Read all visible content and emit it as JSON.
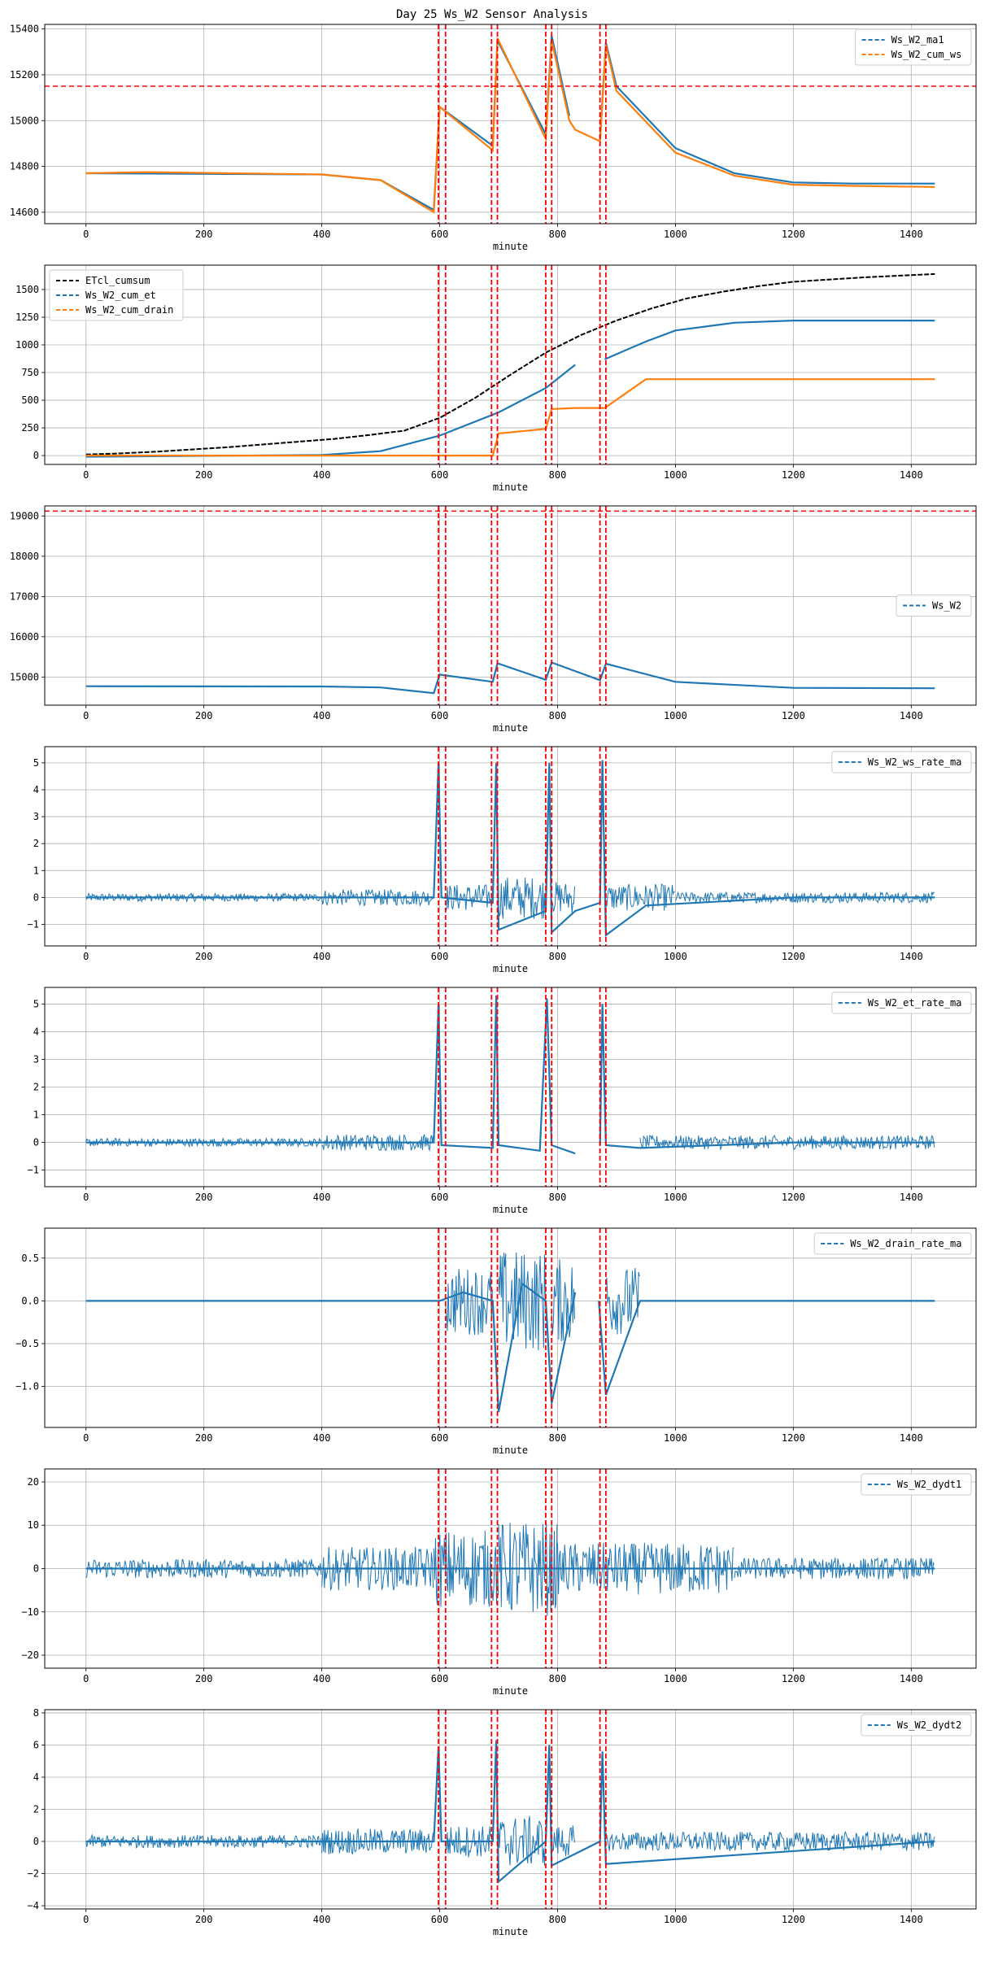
{
  "title": "Day 25 Ws_W2 Sensor Analysis",
  "colors": {
    "blue": "#1f77b4",
    "orange": "#ff7f0e",
    "black": "#000000",
    "red": "#ff0000",
    "grid": "#b0b0b0"
  },
  "event_lines": [
    598,
    610,
    688,
    698,
    780,
    790,
    872,
    882
  ],
  "chart_data": [
    {
      "id": "p1",
      "type": "line",
      "xlabel": "minute",
      "xlim": [
        -70,
        1510
      ],
      "ylim": [
        14550,
        15420
      ],
      "xticks": [
        0,
        200,
        400,
        600,
        800,
        1000,
        1200,
        1400
      ],
      "yticks": [
        14600,
        14800,
        15000,
        15200,
        15400
      ],
      "hline": 15150,
      "legend_loc": "top-right",
      "series": [
        {
          "name": "Ws_W2_ma1",
          "color": "#1f77b4",
          "x": [
            0,
            400,
            500,
            590,
            600,
            690,
            698,
            780,
            790,
            820,
            830,
            872,
            882,
            900,
            1000,
            1100,
            1200,
            1300,
            1440
          ],
          "y": [
            14770,
            14765,
            14740,
            14610,
            15060,
            14890,
            15350,
            14940,
            15370,
            15020,
            null,
            14920,
            15340,
            15150,
            14880,
            14770,
            14730,
            14725,
            14725
          ]
        },
        {
          "name": "Ws_W2_cum_ws",
          "color": "#ff7f0e",
          "x": [
            0,
            100,
            400,
            500,
            590,
            600,
            690,
            698,
            780,
            790,
            820,
            830,
            872,
            882,
            900,
            1000,
            1100,
            1200,
            1300,
            1440
          ],
          "y": [
            14770,
            14775,
            14765,
            14740,
            14600,
            15060,
            14870,
            15360,
            14920,
            15350,
            15000,
            14960,
            14910,
            15330,
            15130,
            14860,
            14760,
            14720,
            14715,
            14710
          ]
        }
      ]
    },
    {
      "id": "p2",
      "type": "line",
      "xlabel": "minute",
      "xlim": [
        -70,
        1510
      ],
      "ylim": [
        -80,
        1720
      ],
      "xticks": [
        0,
        200,
        400,
        600,
        800,
        1000,
        1200,
        1400
      ],
      "yticks": [
        0,
        250,
        500,
        750,
        1000,
        1250,
        1500
      ],
      "legend_loc": "top-left",
      "series": [
        {
          "name": "ETcl_cumsum",
          "color": "#000000",
          "x": [
            0,
            60,
            120,
            180,
            240,
            300,
            360,
            420,
            480,
            540,
            600,
            660,
            720,
            780,
            840,
            900,
            960,
            1020,
            1080,
            1140,
            1200,
            1260,
            1320,
            1380,
            1440
          ],
          "y": [
            10,
            20,
            35,
            55,
            75,
            100,
            125,
            150,
            185,
            225,
            340,
            520,
            730,
            930,
            1090,
            1220,
            1330,
            1420,
            1480,
            1530,
            1570,
            1590,
            1610,
            1625,
            1640
          ]
        },
        {
          "name": "Ws_W2_cum_et",
          "color": "#1f77b4",
          "x": [
            0,
            400,
            500,
            600,
            700,
            780,
            830,
            840,
            880,
            950,
            1000,
            1100,
            1200,
            1300,
            1440
          ],
          "y": [
            -10,
            5,
            40,
            180,
            390,
            610,
            820,
            null,
            870,
            1030,
            1130,
            1200,
            1220,
            1220,
            1220
          ]
        },
        {
          "name": "Ws_W2_cum_drain",
          "color": "#ff7f0e",
          "x": [
            0,
            690,
            700,
            780,
            790,
            830,
            880,
            950,
            1000,
            1200,
            1440
          ],
          "y": [
            0,
            0,
            200,
            240,
            420,
            430,
            430,
            690,
            690,
            690,
            690
          ]
        }
      ]
    },
    {
      "id": "p3",
      "type": "line",
      "xlabel": "minute",
      "xlim": [
        -70,
        1510
      ],
      "ylim": [
        14300,
        19250
      ],
      "xticks": [
        0,
        200,
        400,
        600,
        800,
        1000,
        1200,
        1400
      ],
      "yticks": [
        15000,
        16000,
        17000,
        18000,
        19000
      ],
      "hline": 19120,
      "legend_loc": "center-right",
      "series": [
        {
          "name": "Ws_W2",
          "color": "#1f77b4",
          "x": [
            0,
            400,
            500,
            590,
            600,
            690,
            698,
            780,
            790,
            872,
            882,
            1000,
            1200,
            1440
          ],
          "y": [
            14770,
            14765,
            14740,
            14600,
            15060,
            14880,
            15340,
            14930,
            15360,
            14920,
            15330,
            14880,
            14730,
            14720
          ]
        }
      ]
    },
    {
      "id": "p4",
      "type": "line",
      "xlabel": "minute",
      "xlim": [
        -70,
        1510
      ],
      "ylim": [
        -1.8,
        5.6
      ],
      "xticks": [
        0,
        200,
        400,
        600,
        800,
        1000,
        1200,
        1400
      ],
      "yticks": [
        -1,
        0,
        1,
        2,
        3,
        4,
        5
      ],
      "legend_loc": "top-right",
      "noise": [
        [
          0,
          400,
          0.15
        ],
        [
          400,
          590,
          0.3
        ],
        [
          610,
          690,
          0.5
        ],
        [
          700,
          780,
          0.8
        ],
        [
          790,
          830,
          0.6
        ],
        [
          882,
          1000,
          0.5
        ],
        [
          1000,
          1440,
          0.2
        ]
      ],
      "series": [
        {
          "name": "Ws_W2_ws_rate_ma",
          "color": "#1f77b4",
          "x": [
            0,
            590,
            598,
            603,
            690,
            696,
            700,
            780,
            786,
            790,
            830,
            872,
            876,
            882,
            950,
            1200,
            1440
          ],
          "y": [
            0,
            0,
            5.0,
            0,
            -0.2,
            5.0,
            -1.2,
            -0.5,
            5.0,
            -1.3,
            -0.5,
            -0.2,
            5.1,
            -1.4,
            -0.3,
            0,
            0
          ]
        }
      ]
    },
    {
      "id": "p5",
      "type": "line",
      "xlabel": "minute",
      "xlim": [
        -70,
        1510
      ],
      "ylim": [
        -1.6,
        5.6
      ],
      "xticks": [
        0,
        200,
        400,
        600,
        800,
        1000,
        1200,
        1400
      ],
      "yticks": [
        -1,
        0,
        1,
        2,
        3,
        4,
        5
      ],
      "legend_loc": "top-right",
      "noise": [
        [
          0,
          400,
          0.15
        ],
        [
          400,
          590,
          0.3
        ],
        [
          940,
          1440,
          0.25
        ]
      ],
      "series": [
        {
          "name": "Ws_W2_et_rate_ma",
          "color": "#1f77b4",
          "x": [
            0,
            590,
            598,
            603,
            690,
            696,
            700,
            770,
            782,
            790,
            830,
            840,
            872,
            876,
            882,
            940,
            1200,
            1440
          ],
          "y": [
            0,
            0,
            5.0,
            -0.1,
            -0.2,
            5.3,
            -0.1,
            -0.3,
            5.2,
            -0.1,
            -0.4,
            null,
            -0.1,
            5.0,
            -0.1,
            -0.2,
            0,
            0
          ]
        }
      ]
    },
    {
      "id": "p6",
      "type": "line",
      "xlabel": "minute",
      "xlim": [
        -70,
        1510
      ],
      "ylim": [
        -1.48,
        0.85
      ],
      "xticks": [
        0,
        200,
        400,
        600,
        800,
        1000,
        1200,
        1400
      ],
      "yticks": [
        -1.0,
        -0.5,
        0.0,
        0.5
      ],
      "legend_loc": "top-right",
      "noise": [
        [
          610,
          690,
          0.4
        ],
        [
          700,
          780,
          0.6
        ],
        [
          790,
          830,
          0.5
        ],
        [
          882,
          940,
          0.4
        ]
      ],
      "series": [
        {
          "name": "Ws_W2_drain_rate_ma",
          "color": "#1f77b4",
          "x": [
            0,
            600,
            640,
            690,
            700,
            740,
            780,
            790,
            830,
            840,
            870,
            882,
            940,
            1440
          ],
          "y": [
            0,
            0,
            0.1,
            0,
            -1.3,
            0.2,
            0,
            -1.2,
            0.1,
            null,
            0,
            -1.1,
            0,
            0
          ]
        }
      ]
    },
    {
      "id": "p7",
      "type": "line",
      "xlabel": "minute",
      "xlim": [
        -70,
        1510
      ],
      "ylim": [
        -23,
        23
      ],
      "xticks": [
        0,
        200,
        400,
        600,
        800,
        1000,
        1200,
        1400
      ],
      "yticks": [
        -20,
        -10,
        0,
        10,
        20
      ],
      "legend_loc": "top-right",
      "noise": [
        [
          0,
          400,
          2.2
        ],
        [
          400,
          590,
          5
        ],
        [
          590,
          700,
          9
        ],
        [
          700,
          800,
          11
        ],
        [
          800,
          880,
          6
        ],
        [
          880,
          1100,
          6
        ],
        [
          1100,
          1440,
          2.5
        ]
      ],
      "series": [
        {
          "name": "Ws_W2_dydt1",
          "color": "#1f77b4",
          "x": [
            0,
            1440
          ],
          "y": [
            0,
            0
          ]
        }
      ]
    },
    {
      "id": "p8",
      "type": "line",
      "xlabel": "minute",
      "xlim": [
        -70,
        1510
      ],
      "ylim": [
        -4.2,
        8.2
      ],
      "xticks": [
        0,
        200,
        400,
        600,
        800,
        1000,
        1200,
        1400
      ],
      "yticks": [
        -4,
        -2,
        0,
        2,
        4,
        6,
        8
      ],
      "legend_loc": "top-right",
      "noise": [
        [
          0,
          400,
          0.4
        ],
        [
          400,
          590,
          0.8
        ],
        [
          610,
          690,
          1.0
        ],
        [
          700,
          780,
          1.6
        ],
        [
          790,
          830,
          1.0
        ],
        [
          882,
          1440,
          0.6
        ]
      ],
      "series": [
        {
          "name": "Ws_W2_dydt2",
          "color": "#1f77b4",
          "x": [
            0,
            590,
            598,
            603,
            690,
            696,
            700,
            780,
            786,
            790,
            872,
            876,
            882,
            1440
          ],
          "y": [
            0,
            0,
            5.9,
            0,
            0,
            6.3,
            -2.5,
            0,
            6.0,
            -1.5,
            0,
            5.6,
            -1.4,
            0
          ]
        }
      ]
    }
  ]
}
